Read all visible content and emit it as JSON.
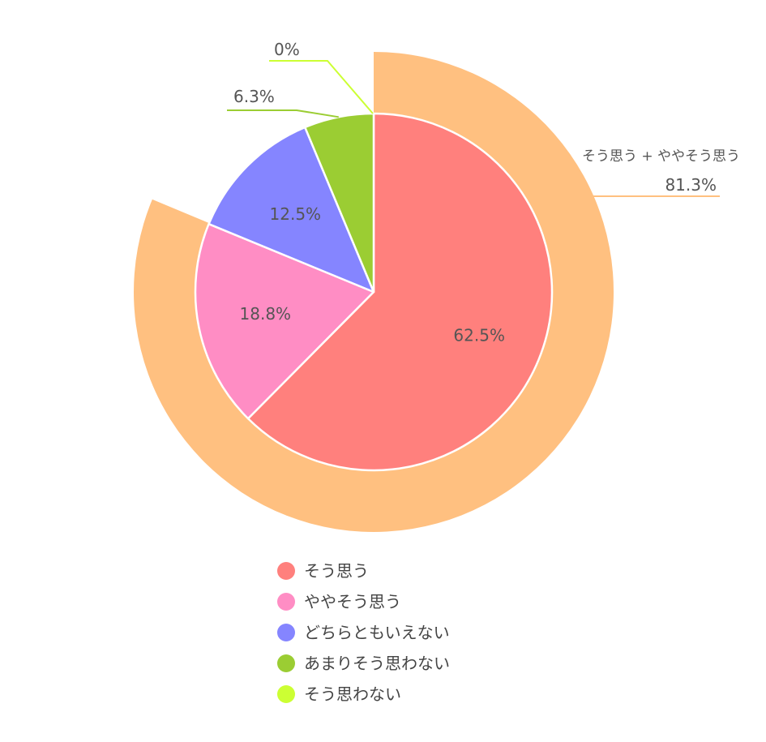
{
  "chart_data": {
    "type": "pie",
    "series": [
      {
        "name": "inner",
        "categories": [
          "そう思う",
          "ややそう思う",
          "どちらともいえない",
          "あまりそう思わない",
          "そう思わない"
        ],
        "values": [
          62.5,
          18.8,
          12.5,
          6.3,
          0
        ],
        "value_labels": [
          "62.5%",
          "18.8%",
          "12.5%",
          "6.3%",
          "0%"
        ],
        "colors": [
          "#FF807D",
          "#FF8DC4",
          "#8585FF",
          "#9BCD33",
          "#CCFF33"
        ]
      },
      {
        "name": "outer",
        "categories": [
          "そう思う + ややそう思う"
        ],
        "values": [
          81.3
        ],
        "value_labels": [
          "81.3%"
        ],
        "colors": [
          "#FFC080"
        ]
      }
    ],
    "legend": {
      "position": "bottom",
      "items": [
        {
          "label": "そう思う",
          "color": "#FF807D"
        },
        {
          "label": "ややそう思う",
          "color": "#FF8DC4"
        },
        {
          "label": "どちらともいえない",
          "color": "#8585FF"
        },
        {
          "label": "あまりそう思わない",
          "color": "#9BCD33"
        },
        {
          "label": "そう思わない",
          "color": "#CCFF33"
        }
      ]
    }
  }
}
